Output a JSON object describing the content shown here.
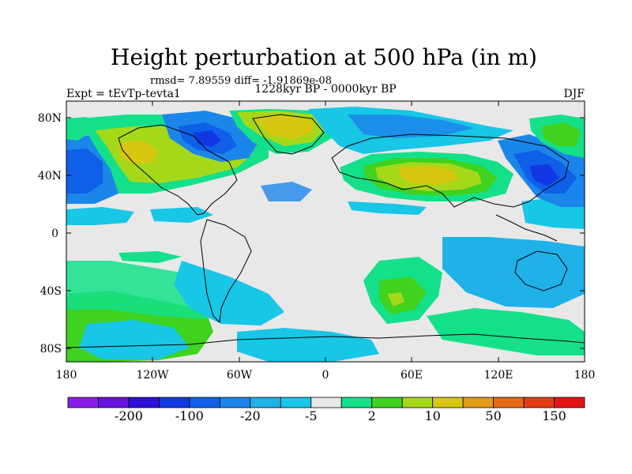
{
  "title": "Height perturbation at 500 hPa (in m)",
  "stats": "rmsd= 7.89559 diff= -1.91869e-08",
  "experiment": "Expt = tEvTp-tevta1",
  "period": "1228kyr BP - 0000kyr BP",
  "season": "DJF",
  "lat_ticks": [
    "80N",
    "40N",
    "0",
    "40S",
    "80S"
  ],
  "lon_ticks": [
    "180",
    "120W",
    "60W",
    "0",
    "60E",
    "120E",
    "180"
  ],
  "colorbar": {
    "colors": [
      "#8a1ee6",
      "#6a10e0",
      "#2c0fd9",
      "#1238e6",
      "#0f5fe8",
      "#1b86ea",
      "#1fb1e8",
      "#18c6e6",
      "#e8e8e8",
      "#14e08a",
      "#3fd21e",
      "#a6d81a",
      "#d7c70f",
      "#e39a15",
      "#e66a15",
      "#e63c15",
      "#e61414"
    ],
    "labels": [
      "-200",
      "-100",
      "-20",
      "-5",
      "2",
      "10",
      "50",
      "150"
    ]
  },
  "palette": {
    "neutral": "#e8e8e8",
    "blue_dark": "#1238e6",
    "blue": "#0f5fe8",
    "blue_mid": "#1b86ea",
    "cyan": "#18c6e6",
    "green_teal": "#14e08a",
    "green": "#3fd21e",
    "yellow_green": "#a6d81a",
    "yellow": "#d7c70f",
    "orange": "#e39a15"
  }
}
